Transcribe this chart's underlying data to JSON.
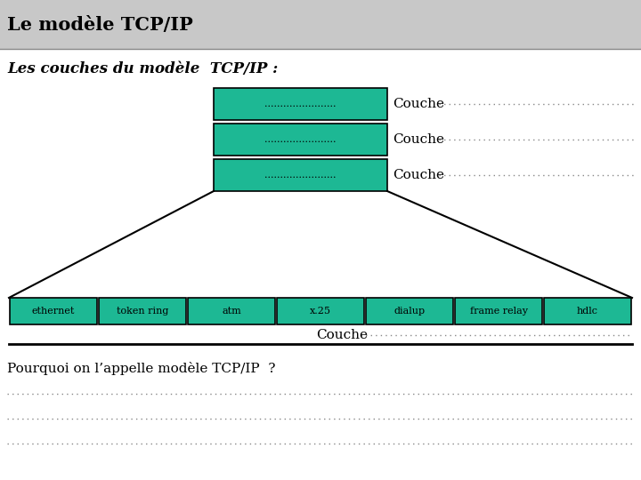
{
  "title": "Le modèle TCP/IP",
  "subtitle": "Les couches du modèle  TCP/IP :",
  "title_bg_top": "#e0e0e0",
  "title_bg_bot": "#b0b0b0",
  "teal_color": "#1db894",
  "box_border": "#000000",
  "bg_color": "#ffffff",
  "top_boxes": [
    {
      "label": ".......................",
      "couche": "Couche"
    },
    {
      "label": ".......................",
      "couche": "Couche"
    },
    {
      "label": ".......................",
      "couche": "Couche"
    }
  ],
  "bottom_boxes": [
    "ethernet",
    "token ring",
    "atm",
    "x.25",
    "dialup",
    "frame relay",
    "hdlc"
  ],
  "bottom_couche": "Couche",
  "bottom_text": "Pourquoi on l’appelle modèle TCP/IP  ?",
  "dot_lines": 3,
  "figsize": [
    7.2,
    5.4
  ],
  "dpi": 100
}
